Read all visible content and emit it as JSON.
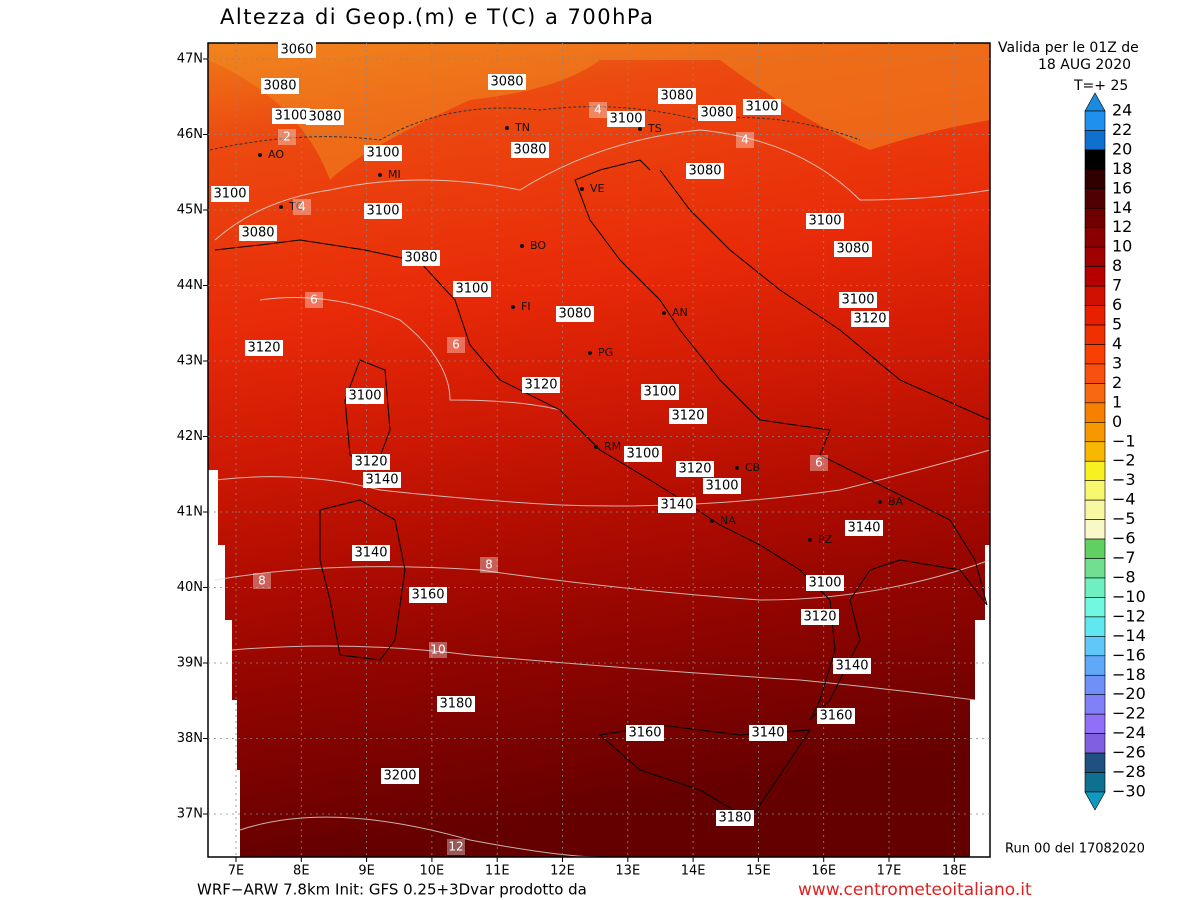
{
  "header": {
    "title": "Altezza di Geop.(m) e T(C) a 700hPa",
    "validity": [
      "Valida per le 01Z de",
      "18 AUG 2020",
      "T=+ 25"
    ]
  },
  "map": {
    "lat_labels": [
      "47N",
      "46N",
      "45N",
      "44N",
      "43N",
      "42N",
      "41N",
      "40N",
      "39N",
      "38N",
      "37N"
    ],
    "lon_labels": [
      "7E",
      "8E",
      "9E",
      "10E",
      "11E",
      "12E",
      "13E",
      "14E",
      "15E",
      "16E",
      "17E",
      "18E"
    ],
    "height_labels": [
      "3060",
      "3080",
      "3100",
      "3080",
      "3080",
      "3080",
      "3080",
      "3100",
      "3100",
      "3100",
      "3080",
      "3080",
      "3100",
      "3100",
      "3080",
      "3100",
      "3080",
      "3080",
      "3100",
      "3100",
      "3120",
      "3080",
      "3120",
      "3120",
      "3100",
      "3100",
      "3120",
      "3100",
      "3120",
      "3120",
      "3140",
      "3100",
      "3140",
      "3140",
      "3140",
      "3100",
      "3160",
      "3120",
      "3140",
      "3180",
      "3160",
      "3140",
      "3160",
      "3200",
      "3180"
    ],
    "temp_labels": [
      "2",
      "4",
      "6",
      "6",
      "6",
      "8",
      "8",
      "10",
      "12",
      "4",
      "4"
    ],
    "city_labels": [
      "TN",
      "MI",
      "TO",
      "AO",
      "BO",
      "FI",
      "AN",
      "PG",
      "RM",
      "NA",
      "CB",
      "BA",
      "PZ",
      "VE",
      "TS"
    ]
  },
  "colorbar": {
    "labels": [
      "24",
      "22",
      "20",
      "18",
      "16",
      "14",
      "12",
      "10",
      "8",
      "7",
      "6",
      "5",
      "4",
      "3",
      "2",
      "1",
      "0",
      "−1",
      "−2",
      "−3",
      "−4",
      "−5",
      "−6",
      "−7",
      "−8",
      "−10",
      "−12",
      "−14",
      "−16",
      "−18",
      "−20",
      "−22",
      "−24",
      "−26",
      "−28",
      "−30"
    ],
    "colors": [
      "#1a8ce0",
      "#2090f0",
      "#1070d0",
      "#000000",
      "#300000",
      "#500000",
      "#700000",
      "#8a0000",
      "#a00000",
      "#b80000",
      "#d01000",
      "#e82000",
      "#f03000",
      "#f84000",
      "#f85010",
      "#f86810",
      "#f88000",
      "#f89800",
      "#f8b800",
      "#f8f020",
      "#f8f870",
      "#f8f8a0",
      "#f8f8c8",
      "#60d060",
      "#70e090",
      "#70f0c0",
      "#70f8e0",
      "#60e8f0",
      "#60c8f8",
      "#60a8f8",
      "#7090f8",
      "#8080f8",
      "#9070f8",
      "#8060e0",
      "#205080",
      "#107090",
      "#1098c0"
    ]
  },
  "footer": {
    "run": "Run 00 del 17082020",
    "credit": "WRF−ARW 7.8km Init: GFS 0.25+3Dvar prodotto da",
    "url": "www.centrometeoitaliano.it"
  }
}
